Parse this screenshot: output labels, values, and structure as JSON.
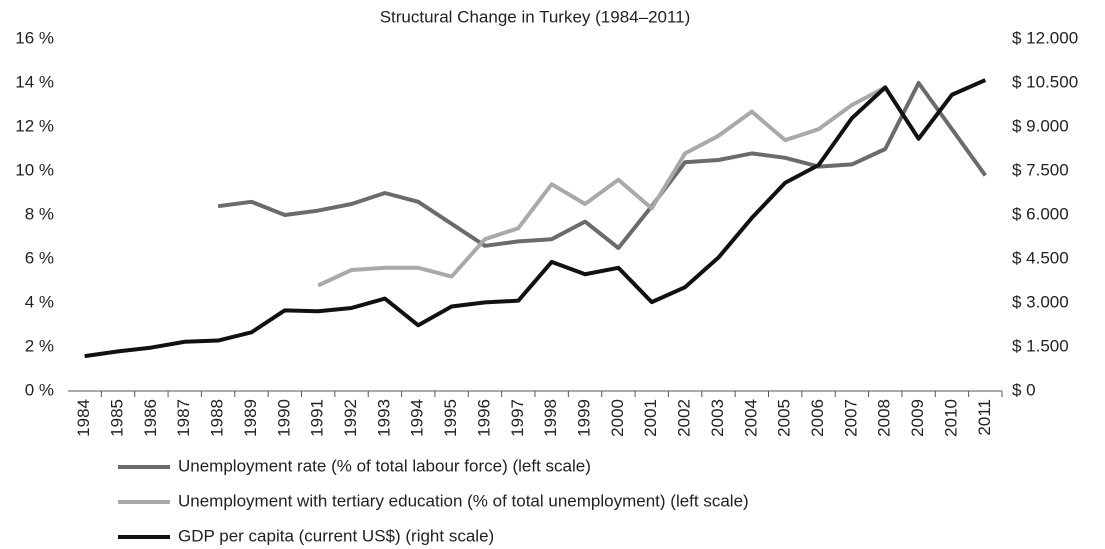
{
  "chart_data": {
    "type": "line",
    "title": "Structural Change in Turkey (1984–2011)",
    "categories": [
      "1984",
      "1985",
      "1986",
      "1987",
      "1988",
      "1989",
      "1990",
      "1991",
      "1992",
      "1993",
      "1994",
      "1995",
      "1996",
      "1997",
      "1998",
      "1999",
      "2000",
      "2001",
      "2002",
      "2003",
      "2004",
      "2005",
      "2006",
      "2007",
      "2008",
      "2009",
      "2010",
      "2011"
    ],
    "series": [
      {
        "name": "Unemployment rate (% of total labour force) (left scale)",
        "color": "#6b6b6b",
        "values": [
          null,
          null,
          null,
          null,
          8.4,
          8.6,
          8.0,
          8.2,
          8.5,
          9.0,
          8.6,
          7.6,
          6.6,
          6.8,
          6.9,
          7.7,
          6.5,
          8.4,
          10.4,
          10.5,
          10.8,
          10.6,
          10.2,
          10.3,
          11.0,
          14.0,
          11.9,
          9.8
        ]
      },
      {
        "name": "Unemployment with tertiary education (% of total unemployment) (left scale)",
        "color": "#a9a9a9",
        "values": [
          null,
          null,
          null,
          null,
          null,
          null,
          null,
          4.8,
          5.5,
          5.6,
          5.6,
          5.2,
          6.9,
          7.4,
          9.4,
          8.5,
          9.6,
          8.3,
          10.8,
          11.6,
          12.7,
          11.4,
          11.9,
          13.0,
          13.8,
          null,
          null,
          null
        ]
      },
      {
        "name": "GDP per capita (current US$) (right scale)",
        "color": "#111111",
        "axis": "y2",
        "values": [
          1190,
          1350,
          1480,
          1680,
          1720,
          2000,
          2750,
          2720,
          2830,
          3150,
          2240,
          2880,
          3020,
          3080,
          4400,
          3980,
          4200,
          3030,
          3540,
          4550,
          5900,
          7100,
          7700,
          9300,
          10350,
          8600,
          10100,
          10600
        ]
      }
    ],
    "ylim": [
      0,
      16
    ],
    "yticks": [
      {
        "value": 0,
        "label": "0 %"
      },
      {
        "value": 2,
        "label": "2 %"
      },
      {
        "value": 4,
        "label": "4 %"
      },
      {
        "value": 6,
        "label": "6 %"
      },
      {
        "value": 8,
        "label": "8 %"
      },
      {
        "value": 10,
        "label": "10 %"
      },
      {
        "value": 12,
        "label": "12 %"
      },
      {
        "value": 14,
        "label": "14 %"
      },
      {
        "value": 16,
        "label": "16 %"
      }
    ],
    "y2lim": [
      0,
      12000
    ],
    "y2ticks": [
      {
        "value": 0,
        "label": "$ 0"
      },
      {
        "value": 1500,
        "label": "$ 1.500"
      },
      {
        "value": 3000,
        "label": "$ 3.000"
      },
      {
        "value": 4500,
        "label": "$ 4.500"
      },
      {
        "value": 6000,
        "label": "$ 6.000"
      },
      {
        "value": 7500,
        "label": "$ 7.500"
      },
      {
        "value": 9000,
        "label": "$ 9.000"
      },
      {
        "value": 10500,
        "label": "$ 10.500"
      },
      {
        "value": 12000,
        "label": "$ 12.000"
      }
    ],
    "grid": false
  }
}
